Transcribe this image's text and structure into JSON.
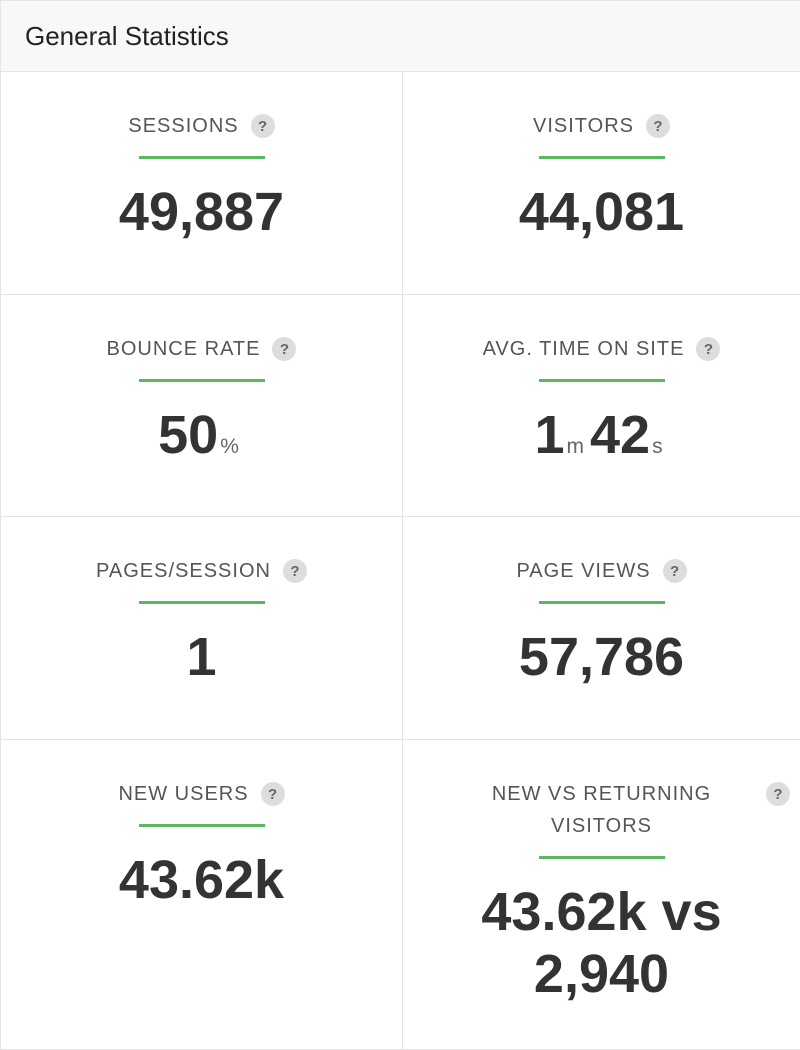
{
  "header": {
    "title": "General Statistics"
  },
  "help_icon": "?",
  "cards": [
    {
      "label": "SESSIONS",
      "parts": [
        {
          "number": "49,887"
        }
      ]
    },
    {
      "label": "VISITORS",
      "parts": [
        {
          "number": "44,081"
        }
      ]
    },
    {
      "label": "BOUNCE RATE",
      "parts": [
        {
          "number": "50"
        },
        {
          "unit": "%"
        }
      ]
    },
    {
      "label": "AVG. TIME ON SITE",
      "parts": [
        {
          "number": "1"
        },
        {
          "unit": "m"
        },
        {
          "number": "42"
        },
        {
          "unit": "s"
        }
      ]
    },
    {
      "label": "PAGES/SESSION",
      "parts": [
        {
          "number": "1"
        }
      ]
    },
    {
      "label": "PAGE VIEWS",
      "parts": [
        {
          "number": "57,786"
        }
      ]
    },
    {
      "label": "NEW USERS",
      "parts": [
        {
          "number": "43.62k"
        }
      ]
    },
    {
      "label": "NEW VS RETURNING VISITORS",
      "parts": [
        {
          "number": "43.62k vs 2,940"
        }
      ]
    }
  ]
}
